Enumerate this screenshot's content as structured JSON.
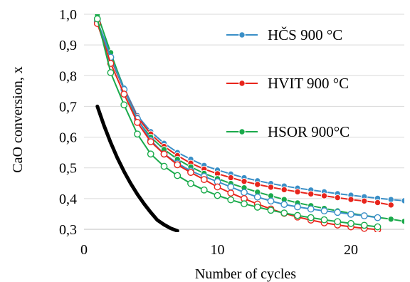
{
  "chart_data": {
    "type": "line",
    "xlabel": "Number of cycles",
    "ylabel": "CaO conversion, x",
    "xlim": [
      0,
      24
    ],
    "ylim": [
      0.3,
      1.0
    ],
    "x_ticks": [
      {
        "value": 0,
        "label": "0"
      },
      {
        "value": 10,
        "label": "10"
      },
      {
        "value": 20,
        "label": "20"
      }
    ],
    "y_ticks": [
      {
        "value": 0.3,
        "label": "0,3"
      },
      {
        "value": 0.4,
        "label": "0,4"
      },
      {
        "value": 0.5,
        "label": "0,5"
      },
      {
        "value": 0.6,
        "label": "0,6"
      },
      {
        "value": 0.7,
        "label": "0,7"
      },
      {
        "value": 0.8,
        "label": "0,8"
      },
      {
        "value": 0.9,
        "label": "0,9"
      },
      {
        "value": 1.0,
        "label": "1,0"
      }
    ],
    "grid": "horizontal",
    "legend_position": "right",
    "series": [
      {
        "name": "HČS 900 °C",
        "color": "#3a8fc7",
        "marker": "filled",
        "x": [
          1,
          2,
          3,
          4,
          5,
          6,
          7,
          8,
          9,
          10,
          11,
          12,
          13,
          14,
          15,
          16,
          17,
          18,
          19,
          20,
          21,
          22,
          23,
          24
        ],
        "y": [
          0.975,
          0.87,
          0.76,
          0.67,
          0.618,
          0.58,
          0.55,
          0.528,
          0.508,
          0.493,
          0.48,
          0.468,
          0.458,
          0.449,
          0.441,
          0.434,
          0.428,
          0.422,
          0.416,
          0.411,
          0.406,
          0.401,
          0.397,
          0.393
        ]
      },
      {
        "name": "HVIT 900 °C",
        "color": "#e8251c",
        "marker": "filled",
        "x": [
          1,
          2,
          3,
          4,
          5,
          6,
          7,
          8,
          9,
          10,
          11,
          12,
          13,
          14,
          15,
          16,
          17,
          18,
          19,
          20,
          21,
          22,
          23
        ],
        "y": [
          0.972,
          0.855,
          0.755,
          0.665,
          0.61,
          0.57,
          0.54,
          0.515,
          0.496,
          0.481,
          0.468,
          0.456,
          0.446,
          0.437,
          0.429,
          0.422,
          0.415,
          0.409,
          0.403,
          0.397,
          0.392,
          0.387,
          0.379
        ]
      },
      {
        "name": "HSOR 900°C",
        "color": "#1aaa4b",
        "marker": "filled",
        "x": [
          1,
          2,
          3,
          4,
          5,
          6,
          7,
          8,
          9,
          10,
          11,
          12,
          13,
          14,
          15,
          16,
          17,
          18,
          19,
          20,
          21,
          22,
          23,
          24
        ],
        "y": [
          1.0,
          0.875,
          0.755,
          0.655,
          0.6,
          0.56,
          0.528,
          0.503,
          0.482,
          0.465,
          0.449,
          0.435,
          0.421,
          0.409,
          0.397,
          0.386,
          0.377,
          0.368,
          0.36,
          0.352,
          0.345,
          0.339,
          0.333,
          0.326
        ]
      },
      {
        "color": "#3a8fc7",
        "marker": "hollow",
        "x": [
          1,
          2,
          3,
          4,
          5,
          6,
          7,
          8,
          9,
          10,
          11,
          12,
          13,
          14,
          15,
          16,
          17,
          18,
          19,
          20,
          21,
          22
        ],
        "y": [
          0.975,
          0.86,
          0.755,
          0.66,
          0.59,
          0.545,
          0.515,
          0.49,
          0.472,
          0.455,
          0.438,
          0.42,
          0.405,
          0.392,
          0.381,
          0.373,
          0.366,
          0.36,
          0.355,
          0.349,
          0.344,
          0.338
        ]
      },
      {
        "color": "#e8251c",
        "marker": "hollow",
        "x": [
          1,
          2,
          3,
          4,
          5,
          6,
          7,
          8,
          9,
          10,
          11,
          12,
          13,
          14,
          15,
          16,
          17,
          18,
          19,
          20,
          21,
          22
        ],
        "y": [
          0.97,
          0.84,
          0.74,
          0.648,
          0.585,
          0.545,
          0.51,
          0.485,
          0.462,
          0.438,
          0.418,
          0.4,
          0.382,
          0.366,
          0.352,
          0.34,
          0.33,
          0.321,
          0.314,
          0.308,
          0.303,
          0.299
        ]
      },
      {
        "color": "#1aaa4b",
        "marker": "hollow",
        "x": [
          1,
          2,
          3,
          4,
          5,
          6,
          7,
          8,
          9,
          10,
          11,
          12,
          13,
          14,
          15,
          16,
          17,
          18,
          19,
          20,
          21,
          22
        ],
        "y": [
          0.985,
          0.81,
          0.705,
          0.61,
          0.545,
          0.505,
          0.475,
          0.449,
          0.428,
          0.41,
          0.396,
          0.383,
          0.372,
          0.362,
          0.353,
          0.345,
          0.338,
          0.331,
          0.325,
          0.319,
          0.313,
          0.308
        ]
      },
      {
        "color": "#000000",
        "marker": "none",
        "x": [
          1,
          1.5,
          2,
          2.5,
          3,
          3.5,
          4,
          4.5,
          5,
          5.5,
          6,
          6.5,
          7
        ],
        "y": [
          0.7,
          0.638,
          0.582,
          0.532,
          0.488,
          0.449,
          0.414,
          0.383,
          0.355,
          0.33,
          0.315,
          0.303,
          0.295
        ]
      }
    ]
  }
}
